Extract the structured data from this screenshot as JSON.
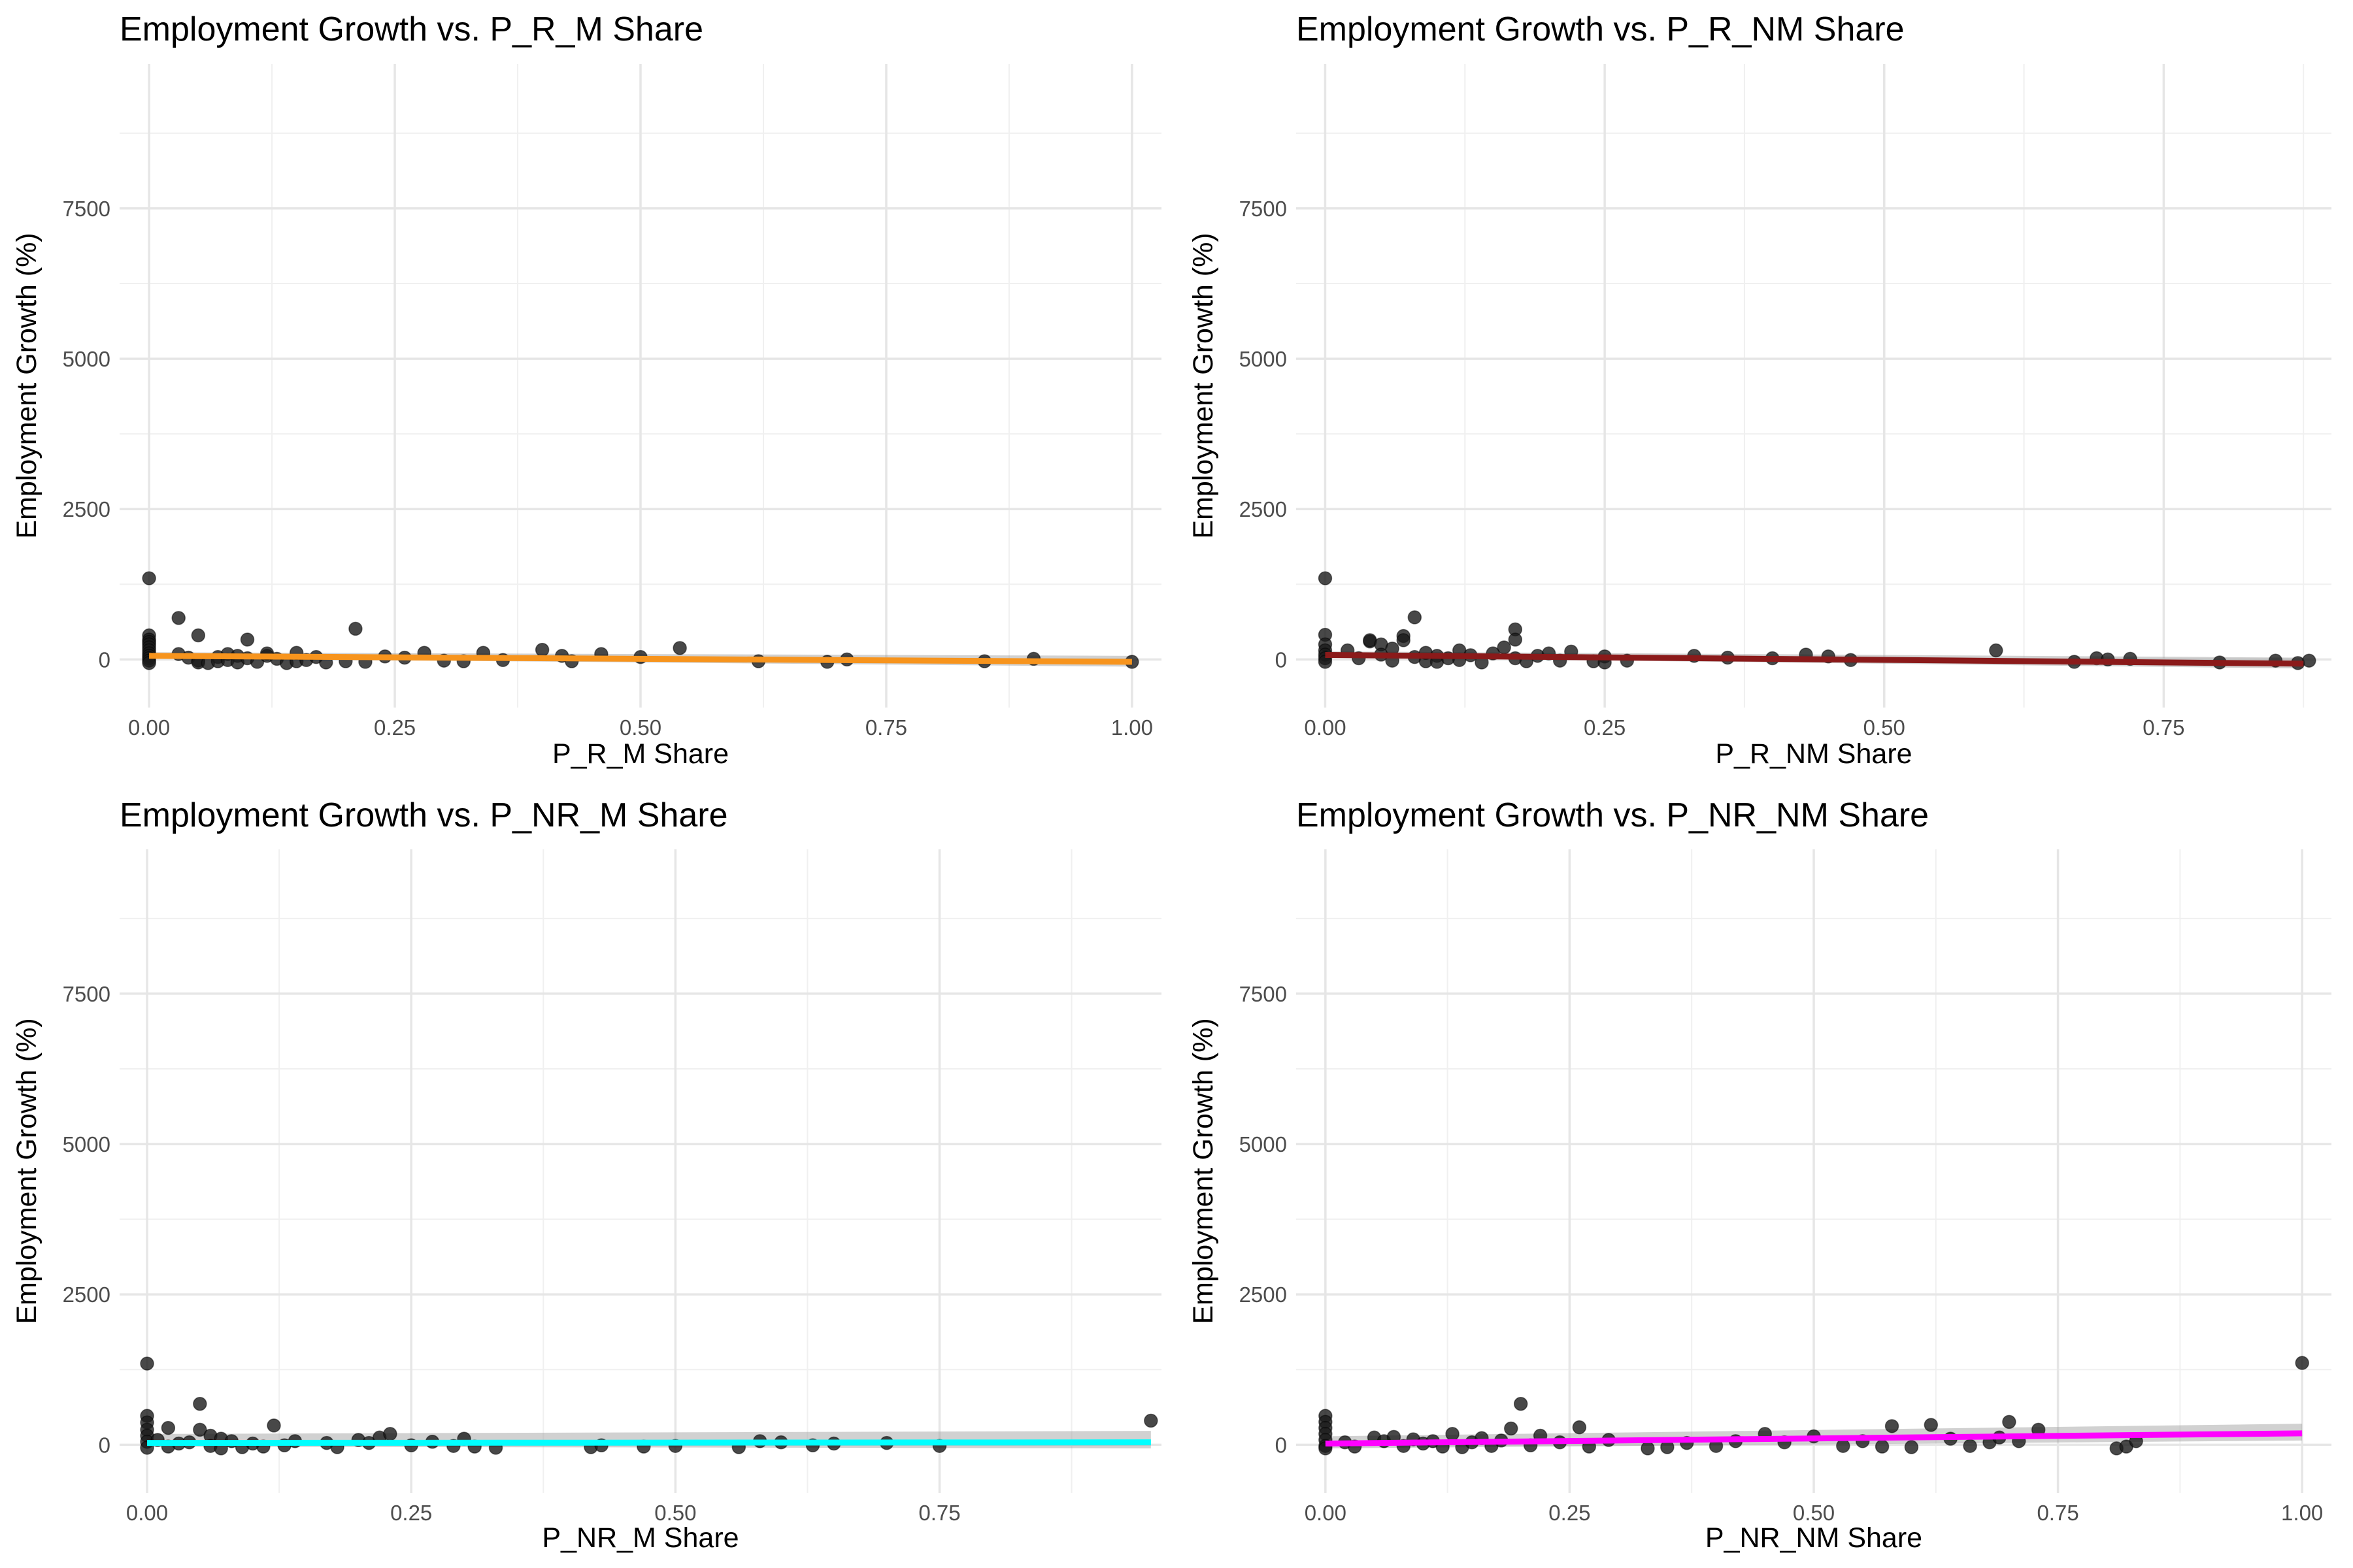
{
  "chart_data": [
    {
      "type": "scatter",
      "title": "Employment Growth vs. P_R_M Share",
      "xlabel": "P_R_M Share",
      "ylabel": "Employment Growth (%)",
      "xlim": [
        -0.03,
        1.03
      ],
      "ylim": [
        -800,
        9900
      ],
      "xticks": [
        0.0,
        0.25,
        0.5,
        0.75,
        1.0
      ],
      "xtick_labels": [
        "0.00",
        "0.25",
        "0.50",
        "0.75",
        "1.00"
      ],
      "yticks": [
        0,
        2500,
        5000,
        7500
      ],
      "ytick_labels": [
        "0",
        "2500",
        "5000",
        "7500"
      ],
      "fit_color": "#f7941d",
      "fit": {
        "x": [
          0,
          1.0
        ],
        "y": [
          60,
          -40
        ]
      },
      "band": [
        -40,
        60
      ],
      "grid": true,
      "points": [
        [
          0,
          1350
        ],
        [
          0,
          400
        ],
        [
          0,
          330
        ],
        [
          0,
          290
        ],
        [
          0,
          250
        ],
        [
          0,
          200
        ],
        [
          0,
          150
        ],
        [
          0,
          100
        ],
        [
          0,
          60
        ],
        [
          0,
          20
        ],
        [
          0,
          -20
        ],
        [
          0,
          -60
        ],
        [
          0.03,
          690
        ],
        [
          0.03,
          90
        ],
        [
          0.04,
          30
        ],
        [
          0.05,
          -20
        ],
        [
          0.05,
          -50
        ],
        [
          0.05,
          400
        ],
        [
          0.06,
          -60
        ],
        [
          0.07,
          40
        ],
        [
          0.07,
          -30
        ],
        [
          0.08,
          90
        ],
        [
          0.08,
          -10
        ],
        [
          0.09,
          60
        ],
        [
          0.09,
          -50
        ],
        [
          0.1,
          20
        ],
        [
          0.1,
          330
        ],
        [
          0.11,
          -40
        ],
        [
          0.12,
          60
        ],
        [
          0.12,
          100
        ],
        [
          0.13,
          10
        ],
        [
          0.14,
          -60
        ],
        [
          0.15,
          -30
        ],
        [
          0.15,
          110
        ],
        [
          0.16,
          -10
        ],
        [
          0.17,
          40
        ],
        [
          0.18,
          -50
        ],
        [
          0.2,
          -30
        ],
        [
          0.21,
          510
        ],
        [
          0.22,
          -40
        ],
        [
          0.24,
          50
        ],
        [
          0.26,
          30
        ],
        [
          0.28,
          110
        ],
        [
          0.3,
          -20
        ],
        [
          0.32,
          -30
        ],
        [
          0.34,
          110
        ],
        [
          0.36,
          -10
        ],
        [
          0.4,
          160
        ],
        [
          0.42,
          60
        ],
        [
          0.43,
          -30
        ],
        [
          0.46,
          90
        ],
        [
          0.5,
          40
        ],
        [
          0.54,
          190
        ],
        [
          0.62,
          -30
        ],
        [
          0.69,
          -40
        ],
        [
          0.71,
          0
        ],
        [
          0.85,
          -30
        ],
        [
          0.9,
          10
        ],
        [
          1.0,
          -40
        ]
      ]
    },
    {
      "type": "scatter",
      "title": "Employment Growth vs. P_R_NM Share",
      "xlabel": "P_R_NM Share",
      "ylabel": "Employment Growth (%)",
      "xlim": [
        -0.026,
        0.9
      ],
      "ylim": [
        -800,
        9900
      ],
      "xticks": [
        0.0,
        0.25,
        0.5,
        0.75
      ],
      "xtick_labels": [
        "0.00",
        "0.25",
        "0.50",
        "0.75"
      ],
      "yticks": [
        0,
        2500,
        5000,
        7500
      ],
      "ytick_labels": [
        "0",
        "2500",
        "5000",
        "7500"
      ],
      "fit_color": "#8b1a1a",
      "fit": {
        "x": [
          0,
          0.875
        ],
        "y": [
          75,
          -70
        ]
      },
      "band": [
        -40,
        60
      ],
      "grid": true,
      "points": [
        [
          0,
          1350
        ],
        [
          0,
          410
        ],
        [
          0,
          250
        ],
        [
          0,
          150
        ],
        [
          0,
          80
        ],
        [
          0,
          20
        ],
        [
          0,
          -40
        ],
        [
          0.02,
          150
        ],
        [
          0.03,
          20
        ],
        [
          0.04,
          300
        ],
        [
          0.04,
          320
        ],
        [
          0.05,
          250
        ],
        [
          0.05,
          80
        ],
        [
          0.06,
          -20
        ],
        [
          0.06,
          180
        ],
        [
          0.07,
          390
        ],
        [
          0.07,
          320
        ],
        [
          0.08,
          700
        ],
        [
          0.08,
          40
        ],
        [
          0.09,
          -30
        ],
        [
          0.09,
          110
        ],
        [
          0.1,
          60
        ],
        [
          0.1,
          -40
        ],
        [
          0.11,
          20
        ],
        [
          0.12,
          150
        ],
        [
          0.12,
          -10
        ],
        [
          0.13,
          70
        ],
        [
          0.14,
          -50
        ],
        [
          0.15,
          100
        ],
        [
          0.16,
          200
        ],
        [
          0.17,
          500
        ],
        [
          0.17,
          330
        ],
        [
          0.17,
          20
        ],
        [
          0.18,
          -30
        ],
        [
          0.19,
          60
        ],
        [
          0.2,
          100
        ],
        [
          0.21,
          -20
        ],
        [
          0.22,
          130
        ],
        [
          0.24,
          -30
        ],
        [
          0.25,
          50
        ],
        [
          0.25,
          -50
        ],
        [
          0.27,
          -20
        ],
        [
          0.33,
          60
        ],
        [
          0.36,
          30
        ],
        [
          0.4,
          20
        ],
        [
          0.43,
          80
        ],
        [
          0.45,
          50
        ],
        [
          0.47,
          -10
        ],
        [
          0.6,
          150
        ],
        [
          0.67,
          -40
        ],
        [
          0.69,
          20
        ],
        [
          0.7,
          0
        ],
        [
          0.72,
          10
        ],
        [
          0.8,
          -50
        ],
        [
          0.85,
          -20
        ],
        [
          0.87,
          -60
        ],
        [
          0.88,
          -20
        ]
      ]
    },
    {
      "type": "scatter",
      "title": "Employment Growth vs. P_NR_M Share",
      "xlabel": "P_NR_M Share",
      "ylabel": "Employment Growth (%)",
      "xlim": [
        -0.026,
        0.96
      ],
      "ylim": [
        -800,
        9900
      ],
      "xticks": [
        0.0,
        0.25,
        0.5,
        0.75
      ],
      "xtick_labels": [
        "0.00",
        "0.25",
        "0.50",
        "0.75"
      ],
      "yticks": [
        0,
        2500,
        5000,
        7500
      ],
      "ytick_labels": [
        "0",
        "2500",
        "5000",
        "7500"
      ],
      "fit_color": "#00ffff",
      "fit": {
        "x": [
          0,
          0.95
        ],
        "y": [
          30,
          40
        ]
      },
      "band": [
        -60,
        150
      ],
      "grid": true,
      "points": [
        [
          0,
          1350
        ],
        [
          0,
          480
        ],
        [
          0,
          370
        ],
        [
          0,
          250
        ],
        [
          0,
          150
        ],
        [
          0,
          50
        ],
        [
          0,
          -50
        ],
        [
          0.01,
          80
        ],
        [
          0.02,
          280
        ],
        [
          0.02,
          -30
        ],
        [
          0.03,
          20
        ],
        [
          0.04,
          40
        ],
        [
          0.05,
          680
        ],
        [
          0.05,
          250
        ],
        [
          0.06,
          150
        ],
        [
          0.06,
          -20
        ],
        [
          0.07,
          100
        ],
        [
          0.07,
          -60
        ],
        [
          0.08,
          60
        ],
        [
          0.09,
          -40
        ],
        [
          0.1,
          20
        ],
        [
          0.11,
          -30
        ],
        [
          0.12,
          320
        ],
        [
          0.13,
          -10
        ],
        [
          0.14,
          60
        ],
        [
          0.17,
          30
        ],
        [
          0.18,
          -40
        ],
        [
          0.2,
          80
        ],
        [
          0.21,
          30
        ],
        [
          0.22,
          120
        ],
        [
          0.23,
          180
        ],
        [
          0.25,
          -10
        ],
        [
          0.27,
          50
        ],
        [
          0.29,
          -20
        ],
        [
          0.3,
          100
        ],
        [
          0.31,
          -30
        ],
        [
          0.33,
          -50
        ],
        [
          0.42,
          -40
        ],
        [
          0.43,
          -10
        ],
        [
          0.47,
          -30
        ],
        [
          0.5,
          -20
        ],
        [
          0.56,
          -40
        ],
        [
          0.58,
          60
        ],
        [
          0.6,
          40
        ],
        [
          0.63,
          -10
        ],
        [
          0.65,
          20
        ],
        [
          0.7,
          30
        ],
        [
          0.75,
          -20
        ],
        [
          0.95,
          400
        ]
      ]
    },
    {
      "type": "scatter",
      "title": "Employment Growth vs. P_NR_NM Share",
      "xlabel": "P_NR_NM Share",
      "ylabel": "Employment Growth (%)",
      "xlim": [
        -0.03,
        1.03
      ],
      "ylim": [
        -800,
        9900
      ],
      "xticks": [
        0.0,
        0.25,
        0.5,
        0.75,
        1.0
      ],
      "xtick_labels": [
        "0.00",
        "0.25",
        "0.50",
        "0.75",
        "1.00"
      ],
      "yticks": [
        0,
        2500,
        5000,
        7500
      ],
      "ytick_labels": [
        "0",
        "2500",
        "5000",
        "7500"
      ],
      "fit_color": "#ff00ff",
      "fit": {
        "x": [
          0,
          1.0
        ],
        "y": [
          20,
          190
        ]
      },
      "band": [
        -80,
        120
      ],
      "grid": true,
      "points": [
        [
          0,
          480
        ],
        [
          0,
          380
        ],
        [
          0,
          280
        ],
        [
          0,
          180
        ],
        [
          0,
          80
        ],
        [
          0,
          -20
        ],
        [
          0,
          -60
        ],
        [
          0.02,
          40
        ],
        [
          0.03,
          -30
        ],
        [
          0.05,
          120
        ],
        [
          0.06,
          60
        ],
        [
          0.07,
          130
        ],
        [
          0.08,
          -20
        ],
        [
          0.09,
          90
        ],
        [
          0.1,
          20
        ],
        [
          0.11,
          60
        ],
        [
          0.12,
          -30
        ],
        [
          0.13,
          180
        ],
        [
          0.14,
          -40
        ],
        [
          0.15,
          40
        ],
        [
          0.16,
          110
        ],
        [
          0.17,
          -20
        ],
        [
          0.18,
          70
        ],
        [
          0.19,
          270
        ],
        [
          0.2,
          680
        ],
        [
          0.21,
          -10
        ],
        [
          0.22,
          150
        ],
        [
          0.24,
          40
        ],
        [
          0.26,
          290
        ],
        [
          0.27,
          -30
        ],
        [
          0.29,
          80
        ],
        [
          0.33,
          -60
        ],
        [
          0.35,
          -40
        ],
        [
          0.37,
          30
        ],
        [
          0.4,
          -20
        ],
        [
          0.42,
          60
        ],
        [
          0.45,
          180
        ],
        [
          0.47,
          40
        ],
        [
          0.5,
          140
        ],
        [
          0.53,
          -20
        ],
        [
          0.55,
          60
        ],
        [
          0.57,
          -30
        ],
        [
          0.58,
          310
        ],
        [
          0.6,
          -40
        ],
        [
          0.62,
          330
        ],
        [
          0.64,
          100
        ],
        [
          0.66,
          -20
        ],
        [
          0.68,
          40
        ],
        [
          0.69,
          120
        ],
        [
          0.7,
          380
        ],
        [
          0.71,
          60
        ],
        [
          0.73,
          250
        ],
        [
          0.81,
          -60
        ],
        [
          0.82,
          -30
        ],
        [
          0.83,
          60
        ],
        [
          1.0,
          1360
        ]
      ]
    }
  ]
}
